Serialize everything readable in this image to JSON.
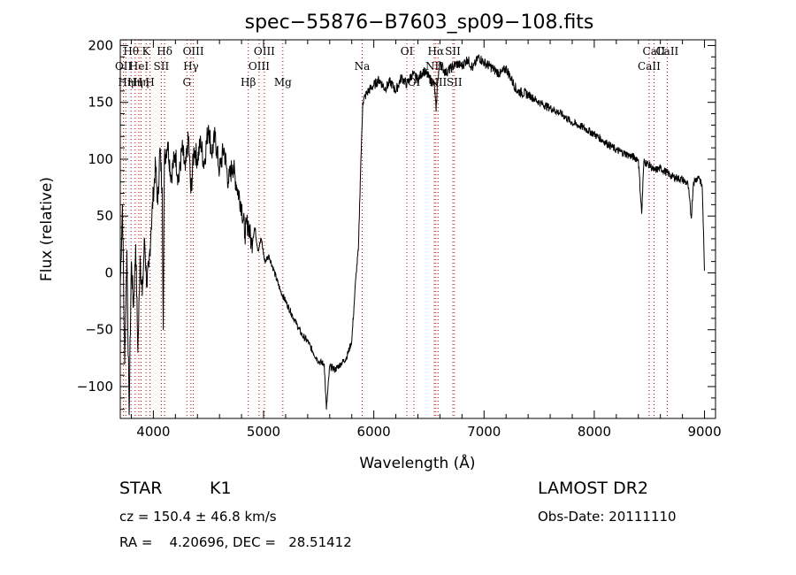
{
  "chart_data": {
    "type": "line",
    "title": "spec−55876−B7603_sp09−108.fits",
    "xlabel": "Wavelength (Å)",
    "ylabel": "Flux (relative)",
    "xlim": [
      3700,
      9100
    ],
    "ylim": [
      -128,
      205
    ],
    "xticks": [
      4000,
      5000,
      6000,
      7000,
      8000,
      9000
    ],
    "yticks": [
      -100,
      -50,
      0,
      50,
      100,
      150,
      200
    ],
    "grid": false,
    "series": [
      {
        "color": "#000000",
        "points": [
          [
            3700,
            -10
          ],
          [
            3720,
            60
          ],
          [
            3740,
            -80
          ],
          [
            3760,
            20
          ],
          [
            3780,
            -125
          ],
          [
            3800,
            10
          ],
          [
            3820,
            -30
          ],
          [
            3840,
            25
          ],
          [
            3860,
            -70
          ],
          [
            3880,
            15
          ],
          [
            3900,
            -20
          ],
          [
            3920,
            30
          ],
          [
            3940,
            -10
          ],
          [
            3960,
            5
          ],
          [
            3980,
            40
          ],
          [
            4000,
            70
          ],
          [
            4020,
            95
          ],
          [
            4040,
            60
          ],
          [
            4060,
            110
          ],
          [
            4080,
            75
          ],
          [
            4090,
            -50
          ],
          [
            4100,
            100
          ],
          [
            4130,
            115
          ],
          [
            4160,
            85
          ],
          [
            4200,
            105
          ],
          [
            4230,
            80
          ],
          [
            4260,
            110
          ],
          [
            4290,
            90
          ],
          [
            4320,
            120
          ],
          [
            4340,
            70
          ],
          [
            4370,
            110
          ],
          [
            4400,
            100
          ],
          [
            4430,
            115
          ],
          [
            4460,
            95
          ],
          [
            4500,
            130
          ],
          [
            4530,
            105
          ],
          [
            4560,
            120
          ],
          [
            4600,
            90
          ],
          [
            4640,
            110
          ],
          [
            4680,
            80
          ],
          [
            4720,
            95
          ],
          [
            4760,
            75
          ],
          [
            4800,
            60
          ],
          [
            4830,
            35
          ],
          [
            4860,
            45
          ],
          [
            4890,
            25
          ],
          [
            4920,
            40
          ],
          [
            4950,
            20
          ],
          [
            4980,
            30
          ],
          [
            5010,
            10
          ],
          [
            5050,
            15
          ],
          [
            5100,
            0
          ],
          [
            5150,
            -15
          ],
          [
            5200,
            -25
          ],
          [
            5250,
            -35
          ],
          [
            5300,
            -45
          ],
          [
            5350,
            -55
          ],
          [
            5400,
            -60
          ],
          [
            5450,
            -70
          ],
          [
            5500,
            -78
          ],
          [
            5550,
            -80
          ],
          [
            5570,
            -120
          ],
          [
            5600,
            -82
          ],
          [
            5650,
            -85
          ],
          [
            5700,
            -80
          ],
          [
            5750,
            -75
          ],
          [
            5800,
            -60
          ],
          [
            5820,
            -30
          ],
          [
            5840,
            0
          ],
          [
            5860,
            20
          ],
          [
            5880,
            90
          ],
          [
            5900,
            150
          ],
          [
            5920,
            155
          ],
          [
            5950,
            160
          ],
          [
            6000,
            165
          ],
          [
            6050,
            170
          ],
          [
            6100,
            162
          ],
          [
            6150,
            168
          ],
          [
            6200,
            160
          ],
          [
            6250,
            172
          ],
          [
            6300,
            166
          ],
          [
            6350,
            175
          ],
          [
            6400,
            170
          ],
          [
            6450,
            178
          ],
          [
            6500,
            172
          ],
          [
            6550,
            165
          ],
          [
            6565,
            142
          ],
          [
            6580,
            170
          ],
          [
            6600,
            185
          ],
          [
            6650,
            176
          ],
          [
            6700,
            180
          ],
          [
            6750,
            184
          ],
          [
            6800,
            182
          ],
          [
            6850,
            188
          ],
          [
            6900,
            180
          ],
          [
            6950,
            190
          ],
          [
            7000,
            185
          ],
          [
            7050,
            182
          ],
          [
            7100,
            178
          ],
          [
            7150,
            175
          ],
          [
            7200,
            180
          ],
          [
            7250,
            170
          ],
          [
            7300,
            160
          ],
          [
            7400,
            157
          ],
          [
            7500,
            150
          ],
          [
            7600,
            145
          ],
          [
            7700,
            140
          ],
          [
            7800,
            132
          ],
          [
            7900,
            128
          ],
          [
            8000,
            122
          ],
          [
            8100,
            115
          ],
          [
            8200,
            108
          ],
          [
            8300,
            104
          ],
          [
            8400,
            100
          ],
          [
            8430,
            52
          ],
          [
            8450,
            98
          ],
          [
            8500,
            95
          ],
          [
            8542,
            90
          ],
          [
            8600,
            92
          ],
          [
            8662,
            88
          ],
          [
            8700,
            85
          ],
          [
            8800,
            82
          ],
          [
            8850,
            78
          ],
          [
            8880,
            48
          ],
          [
            8900,
            80
          ],
          [
            8950,
            85
          ],
          [
            8980,
            75
          ],
          [
            9000,
            2
          ]
        ]
      }
    ],
    "line_color": "#c00000",
    "lines": [
      {
        "x": 3729,
        "label": "OII",
        "row": 2
      },
      {
        "x": 3750,
        "label": "Hη",
        "row": 3
      },
      {
        "x": 3798,
        "label": "Hθ",
        "row": 1
      },
      {
        "x": 3835,
        "label": "Hη",
        "row": 3
      },
      {
        "x": 3869,
        "label": "HeI",
        "row": 2
      },
      {
        "x": 3889,
        "label": "Hη",
        "row": 3
      },
      {
        "x": 3934,
        "label": "K",
        "row": 1
      },
      {
        "x": 3970,
        "label": "H",
        "row": 3
      },
      {
        "x": 4072,
        "label": "SII",
        "row": 2
      },
      {
        "x": 4102,
        "label": "Hδ",
        "row": 1
      },
      {
        "x": 4304,
        "label": "G",
        "row": 3
      },
      {
        "x": 4341,
        "label": "Hγ",
        "row": 2
      },
      {
        "x": 4363,
        "label": "OIII",
        "row": 1
      },
      {
        "x": 4861,
        "label": "Hβ",
        "row": 3
      },
      {
        "x": 4959,
        "label": "OIII",
        "row": 2
      },
      {
        "x": 5007,
        "label": "OIII",
        "row": 1
      },
      {
        "x": 5175,
        "label": "Mg",
        "row": 3
      },
      {
        "x": 5894,
        "label": "Na",
        "row": 2
      },
      {
        "x": 6300,
        "label": "OI",
        "row": 1
      },
      {
        "x": 6364,
        "label": "OI",
        "row": 3
      },
      {
        "x": 6548,
        "label": "NII",
        "row": 2
      },
      {
        "x": 6563,
        "label": "Hα",
        "row": 1
      },
      {
        "x": 6583,
        "label": "NII",
        "row": 3
      },
      {
        "x": 6717,
        "label": "SII",
        "row": 1
      },
      {
        "x": 6731,
        "label": "SII",
        "row": 3
      },
      {
        "x": 8498,
        "label": "CaII",
        "row": 2
      },
      {
        "x": 8542,
        "label": "CaII",
        "row": 1
      },
      {
        "x": 8662,
        "label": "CaII",
        "row": 1
      }
    ]
  },
  "info": {
    "class_label": "STAR",
    "subclass_label": "K1",
    "survey": "LAMOST DR2",
    "cz_text": "cz = 150.4 ± 46.8 km/s",
    "obs_date_text": "Obs-Date: 20111110",
    "radec_text": "RA =    4.20696, DEC =   28.51412"
  }
}
